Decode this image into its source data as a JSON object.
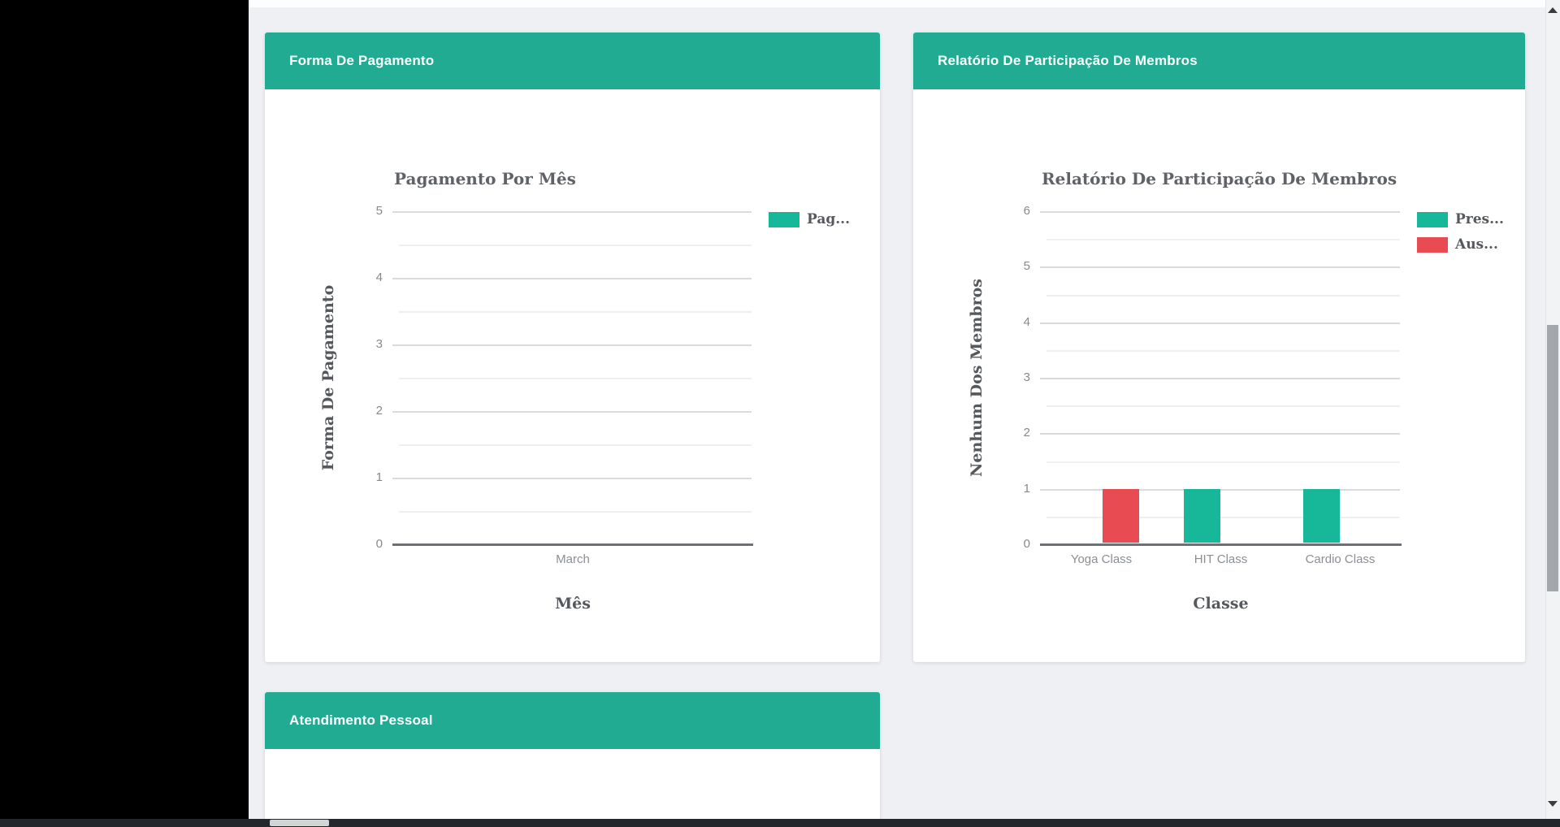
{
  "colors": {
    "page_bg": "#eef0f3",
    "sidebar_bg": "#000000",
    "card_header_bg": "#21ab92",
    "card_bg": "#ffffff",
    "teal_series": "#17b89a",
    "red_series": "#e94b52"
  },
  "cards": [
    {
      "title": "Forma De Pagamento"
    },
    {
      "title": "Relatório De Participação De Membros"
    },
    {
      "title": "Atendimento Pessoal"
    }
  ],
  "chart_data": [
    {
      "type": "bar",
      "title": "Pagamento Por Mês",
      "xlabel": "Mês",
      "ylabel": "Forma De Pagamento",
      "categories": [
        "March"
      ],
      "series": [
        {
          "name": "Pag...",
          "color": "#17b89a",
          "values": [
            0
          ]
        }
      ],
      "ylim": [
        0,
        5
      ],
      "yticks": [
        0,
        1,
        2,
        3,
        4,
        5
      ],
      "grid": true,
      "legend_position": "right-top"
    },
    {
      "type": "bar",
      "title": "Relatório De Participação De Membros",
      "xlabel": "Classe",
      "ylabel": "Nenhum Dos Membros",
      "categories": [
        "Yoga Class",
        "HIT Class",
        "Cardio Class"
      ],
      "series": [
        {
          "name": "Pres...",
          "color": "#17b89a",
          "values": [
            0,
            1,
            1
          ]
        },
        {
          "name": "Aus...",
          "color": "#e94b52",
          "values": [
            1,
            0,
            0
          ]
        }
      ],
      "ylim": [
        0,
        6
      ],
      "yticks": [
        0,
        1,
        2,
        3,
        4,
        5,
        6
      ],
      "grid": true,
      "legend_position": "right-top"
    }
  ]
}
